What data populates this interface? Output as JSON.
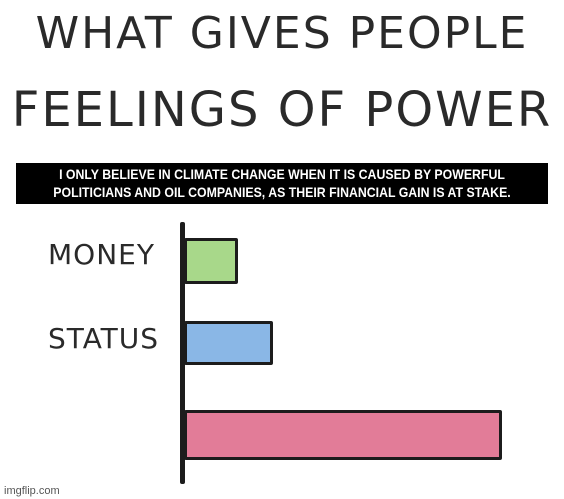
{
  "meme": {
    "title_line1": "WHAT GIVES PEOPLE",
    "title_line2": "FEELINGS OF  POWER",
    "caption_line1": "I ONLY BELIEVE IN CLIMATE CHANGE WHEN IT IS CAUSED BY POWERFUL",
    "caption_line2": "POLITICIANS AND OIL COMPANIES, AS THEIR FINANCIAL GAIN IS AT STAKE."
  },
  "chart_data": {
    "type": "bar",
    "orientation": "horizontal",
    "categories": [
      "MONEY",
      "STATUS",
      ""
    ],
    "values": [
      0.17,
      0.28,
      1.0
    ],
    "colors": [
      "#a8d88a",
      "#8ab7e6",
      "#e27c98"
    ]
  },
  "footer": {
    "watermark": "imgflip.com"
  }
}
